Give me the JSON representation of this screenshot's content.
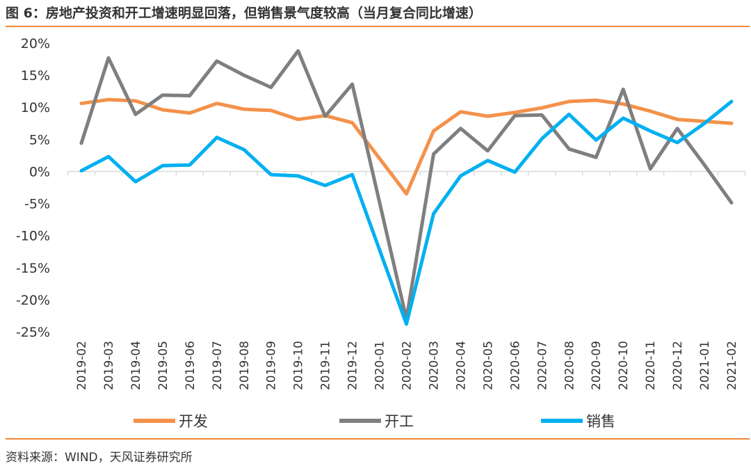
{
  "figure": {
    "title": "图 6：房地产投资和开工增速明显回落，但销售景气度较高（当月复合同比增速）",
    "source": "资料来源：WIND，天风证券研究所"
  },
  "colors": {
    "rule": "#F0883A",
    "axis": "#D9D9D9"
  },
  "chart_data": {
    "type": "line",
    "title": "",
    "xlabel": "",
    "ylabel": "",
    "ylim": [
      -25,
      20
    ],
    "yticks": [
      20,
      15,
      10,
      5,
      0,
      -5,
      -10,
      -15,
      -20,
      -25
    ],
    "yticks_label": [
      "20%",
      "15%",
      "10%",
      "5%",
      "0%",
      "-5%",
      "-10%",
      "-15%",
      "-20%",
      "-25%"
    ],
    "grid": false,
    "legend_position": "bottom",
    "categories": [
      "2019-02",
      "2019-03",
      "2019-04",
      "2019-05",
      "2019-06",
      "2019-07",
      "2019-08",
      "2019-09",
      "2019-10",
      "2019-11",
      "2019-12",
      "2020-01",
      "2020-02",
      "2020-03",
      "2020-04",
      "2020-05",
      "2020-06",
      "2020-07",
      "2020-08",
      "2020-09",
      "2020-10",
      "2020-11",
      "2020-12",
      "2021-01",
      "2021-02"
    ],
    "series": [
      {
        "name": "开发",
        "color": "#F4914A",
        "values": [
          10.6,
          11.2,
          11.0,
          9.6,
          9.1,
          10.6,
          9.7,
          9.5,
          8.1,
          8.7,
          7.6,
          null,
          -3.5,
          6.3,
          9.3,
          8.6,
          9.2,
          9.9,
          10.9,
          11.1,
          10.5,
          9.4,
          8.1,
          7.8,
          7.5
        ]
      },
      {
        "name": "开工",
        "color": "#7F7F7F",
        "values": [
          4.4,
          17.7,
          8.9,
          11.9,
          11.8,
          17.2,
          15.0,
          13.1,
          18.8,
          8.6,
          13.6,
          null,
          -23.0,
          2.7,
          6.7,
          3.2,
          8.7,
          8.8,
          3.5,
          2.2,
          12.8,
          0.4,
          6.7,
          1.0,
          -4.9
        ]
      },
      {
        "name": "销售",
        "color": "#00B0F0",
        "values": [
          0.1,
          2.3,
          -1.6,
          0.9,
          1.0,
          5.3,
          3.4,
          -0.5,
          -0.7,
          -2.2,
          -0.5,
          null,
          -23.8,
          -6.6,
          -0.7,
          1.7,
          -0.1,
          5.1,
          8.9,
          4.9,
          8.3,
          6.3,
          4.5,
          7.5,
          10.9
        ]
      }
    ]
  }
}
